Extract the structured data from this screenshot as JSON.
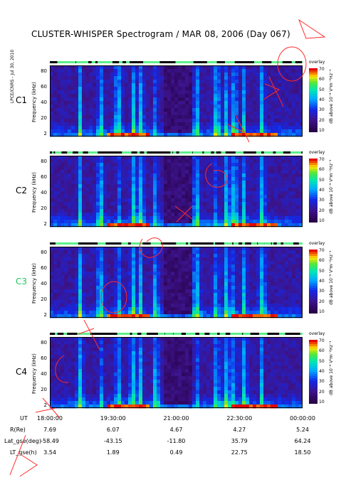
{
  "chart_data": {
    "type": "heatmap",
    "title": "CLUSTER-WHISPER Spectrogram / MAR 08, 2006 (Day 067)",
    "credit": "LPCE/CNRS - Jul 30, 2010",
    "ylabel": "Frequency (kHz)",
    "ylim": [
      2,
      80
    ],
    "yticks": [
      "80",
      "60",
      "40",
      "20",
      "2"
    ],
    "colorbar": {
      "label": "dB above 10⁻⁸ V²m⁻²Hz⁻¹",
      "range": [
        10,
        70
      ],
      "ticks": [
        "70",
        "60",
        "50",
        "40",
        "30",
        "20",
        "10"
      ],
      "header": "overlay"
    },
    "spacecraft": [
      {
        "name": "C1",
        "color": "#000000"
      },
      {
        "name": "C2",
        "color": "#000000"
      },
      {
        "name": "C3",
        "color": "#22c55e"
      },
      {
        "name": "C4",
        "color": "#000000"
      }
    ],
    "xaxis": {
      "ticks": [
        "18:00:00",
        "19:30:00",
        "21:00:00",
        "22:30:00",
        "00:00:00"
      ],
      "rows": [
        {
          "label": "UT",
          "values": [
            "18:00:00",
            "19:30:00",
            "21:00:00",
            "22:30:00",
            "00:00:00"
          ]
        },
        {
          "label": "R(Re)",
          "values": [
            "7.69",
            "6.07",
            "4.67",
            "4.27",
            "5.24"
          ]
        },
        {
          "label": "Lat_gse(deg)",
          "values": [
            "-58.49",
            "-43.15",
            "-11.80",
            "35.79",
            "64.24"
          ]
        },
        {
          "label": "LT_gse(h)",
          "values": [
            "3.54",
            "1.89",
            "0.49",
            "22.75",
            "18.50"
          ]
        }
      ]
    }
  }
}
